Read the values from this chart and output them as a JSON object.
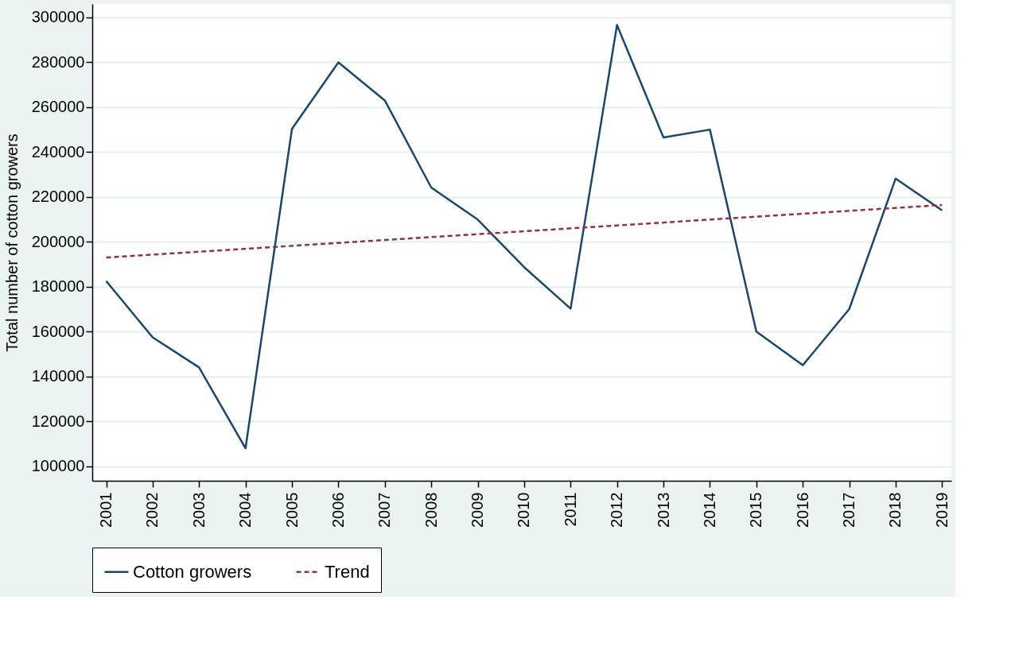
{
  "chart_data": {
    "type": "line",
    "ylabel": "Total number of cotton growers",
    "xlim": [
      2000.7,
      2019.2
    ],
    "xticks": [
      2001,
      2002,
      2003,
      2004,
      2005,
      2006,
      2007,
      2008,
      2009,
      2010,
      2011,
      2012,
      2013,
      2014,
      2015,
      2016,
      2017,
      2018,
      2019
    ],
    "ylim": [
      93500,
      306000
    ],
    "yticks": [
      100000,
      120000,
      140000,
      160000,
      180000,
      200000,
      220000,
      240000,
      260000,
      280000,
      300000
    ],
    "grid": "y",
    "legend": "bottom",
    "marker": "none",
    "series": [
      {
        "name": "Cotton growers",
        "color": "#1a476f",
        "line_style": "solid",
        "x": [
          2001,
          2002,
          2003,
          2004,
          2005,
          2006,
          2007,
          2008,
          2009,
          2010,
          2011,
          2012,
          2013,
          2014,
          2015,
          2016,
          2017,
          2018,
          2019
        ],
        "values": [
          182500,
          157400,
          144000,
          108000,
          250300,
          280000,
          263000,
          224200,
          209900,
          188700,
          170200,
          296600,
          246500,
          250000,
          160000,
          145000,
          170000,
          228200,
          214000
        ]
      },
      {
        "name": "Trend",
        "color": "#90353b",
        "line_style": "dashed",
        "x": [
          2001,
          2019
        ],
        "values": [
          193000,
          216400
        ]
      }
    ]
  }
}
